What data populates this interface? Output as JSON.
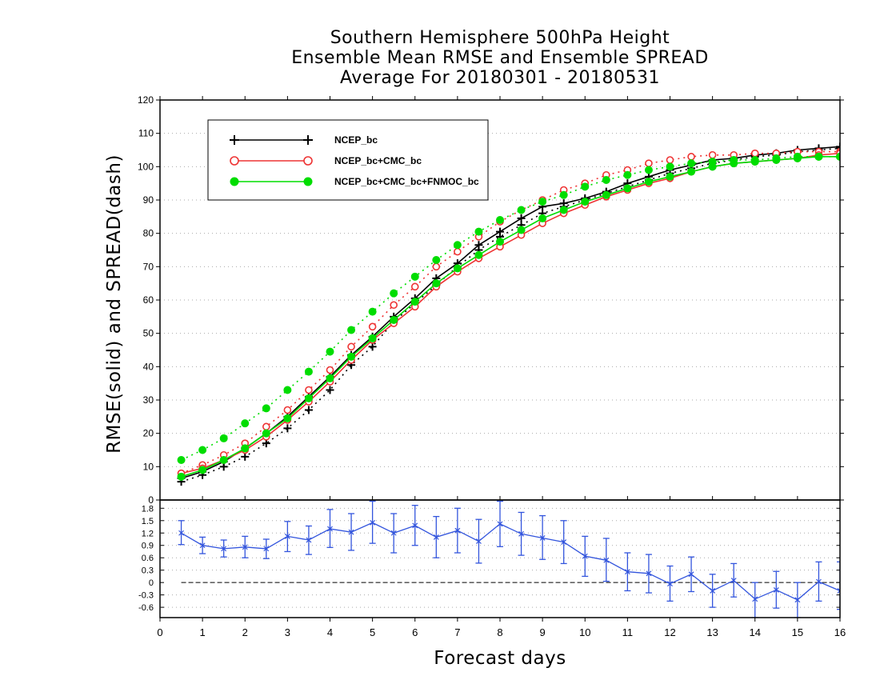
{
  "title": {
    "line1": "Southern Hemisphere 500hPa Height",
    "line2": "Ensemble Mean RMSE and Ensemble SPREAD",
    "line3": "Average For 20180301 - 20180531"
  },
  "chart_data": [
    {
      "type": "line",
      "panel": "top",
      "ylabel": "RMSE(solid) and SPREAD(dash)",
      "xlim": [
        0,
        16
      ],
      "ylim": [
        0,
        120
      ],
      "yticks": [
        0,
        10,
        20,
        30,
        40,
        50,
        60,
        70,
        80,
        90,
        100,
        110,
        120
      ],
      "grid": "dotted horizontal",
      "legend_position": "top-left",
      "x": [
        0.5,
        1,
        1.5,
        2,
        2.5,
        3,
        3.5,
        4,
        4.5,
        5,
        5.5,
        6,
        6.5,
        7,
        7.5,
        8,
        8.5,
        9,
        9.5,
        10,
        10.5,
        11,
        11.5,
        12,
        12.5,
        13,
        13.5,
        14,
        14.5,
        15,
        15.5,
        16
      ],
      "series": [
        {
          "name": "NCEP_bc",
          "color": "#000000",
          "marker": "plus",
          "rmse": [
            6.5,
            8.5,
            11.5,
            15.5,
            20,
            25,
            31,
            37,
            43.5,
            49,
            55,
            60.5,
            66.5,
            71,
            76.5,
            80.5,
            84.5,
            88,
            89,
            90.5,
            92.5,
            95,
            97,
            99,
            100.5,
            102,
            102.5,
            103.5,
            104,
            105,
            105.5,
            106
          ],
          "spread": [
            5.5,
            7.5,
            10,
            13,
            17,
            21.5,
            27,
            33,
            40.5,
            46,
            53.5,
            59,
            64.5,
            70,
            75,
            79,
            82.5,
            86,
            88,
            90,
            92,
            94,
            96,
            98,
            99.5,
            101,
            102,
            103,
            103.5,
            104.5,
            105,
            105.5
          ]
        },
        {
          "name": "NCEP_bc+CMC_bc",
          "color": "#ee3333",
          "marker": "open-circle",
          "rmse": [
            8,
            9.5,
            12,
            15,
            19,
            24,
            29.5,
            35.5,
            42,
            48,
            53,
            58,
            64,
            68.5,
            72.5,
            76,
            79.5,
            83,
            86,
            88.5,
            91,
            93,
            95,
            96.5,
            98.5,
            100,
            101,
            101.5,
            102,
            102.5,
            103.5,
            104
          ],
          "spread": [
            8,
            10.5,
            13.5,
            17,
            22,
            27,
            33,
            39,
            46,
            52,
            58.5,
            64,
            70,
            74.5,
            79,
            83.5,
            87,
            90,
            93,
            95,
            97.5,
            99,
            101,
            102,
            103,
            103.5,
            103.5,
            104,
            104,
            104.5,
            104.5,
            104.5
          ]
        },
        {
          "name": "NCEP_bc+CMC_bc+FNMOC_bc",
          "color": "#00dd00",
          "marker": "filled-circle",
          "rmse": [
            7,
            9,
            12,
            15.5,
            20,
            24.5,
            30.5,
            36.5,
            43,
            48.5,
            54,
            59.5,
            65,
            69.5,
            73.5,
            77.5,
            81,
            84.5,
            87,
            89.5,
            91.5,
            93.5,
            95.5,
            97,
            98.5,
            100,
            101,
            101.5,
            102,
            102.5,
            103,
            103
          ],
          "spread": [
            12,
            15,
            18.5,
            23,
            27.5,
            33,
            38.5,
            44.5,
            51,
            56.5,
            62,
            67,
            72,
            76.5,
            80.5,
            84,
            87,
            89.5,
            91.5,
            94,
            96,
            97.5,
            99,
            100,
            101,
            101.5,
            102,
            102,
            102.5,
            103,
            103,
            103
          ]
        }
      ]
    },
    {
      "type": "line",
      "panel": "bottom",
      "xlabel": "Forecast days",
      "xlim": [
        0,
        16
      ],
      "xticks": [
        0,
        1,
        2,
        3,
        4,
        5,
        6,
        7,
        8,
        9,
        10,
        11,
        12,
        13,
        14,
        15,
        16
      ],
      "ylim": [
        -0.85,
        2.0
      ],
      "yticks": [
        "-0.6",
        "-0.3",
        "0",
        "0.3",
        "0.6",
        "0.9",
        "1.2",
        "1.5",
        "1.8"
      ],
      "reference_line": 0,
      "color": "#3355dd",
      "error_bars": true,
      "x": [
        0.5,
        1,
        1.5,
        2,
        2.5,
        3,
        3.5,
        4,
        4.5,
        5,
        5.5,
        6,
        6.5,
        7,
        7.5,
        8,
        8.5,
        9,
        9.5,
        10,
        10.5,
        11,
        11.5,
        12,
        12.5,
        13,
        13.5,
        14,
        14.5,
        15,
        15.5,
        16
      ],
      "values": [
        1.2,
        0.9,
        0.82,
        0.86,
        0.82,
        1.12,
        1.03,
        1.3,
        1.22,
        1.45,
        1.2,
        1.38,
        1.1,
        1.26,
        1.0,
        1.42,
        1.18,
        1.08,
        0.98,
        0.64,
        0.54,
        0.26,
        0.22,
        -0.03,
        0.2,
        -0.2,
        0.05,
        -0.4,
        -0.18,
        -0.42,
        0.02,
        -0.2
      ],
      "err_upper": [
        1.5,
        1.1,
        1.03,
        1.12,
        1.05,
        1.48,
        1.37,
        1.77,
        1.67,
        1.97,
        1.67,
        1.87,
        1.6,
        1.8,
        1.53,
        1.97,
        1.7,
        1.62,
        1.5,
        1.12,
        1.07,
        0.72,
        0.68,
        0.4,
        0.62,
        0.2,
        0.46,
        0.0,
        0.27,
        0.0,
        0.5,
        0.5
      ],
      "err_lower": [
        0.92,
        0.7,
        0.62,
        0.6,
        0.58,
        0.75,
        0.68,
        0.85,
        0.78,
        0.95,
        0.72,
        0.9,
        0.6,
        0.72,
        0.47,
        0.87,
        0.66,
        0.56,
        0.46,
        0.15,
        0.03,
        -0.2,
        -0.25,
        -0.45,
        -0.22,
        -0.6,
        -0.35,
        -0.85,
        -0.62,
        -0.85,
        -0.45,
        -0.65
      ]
    }
  ]
}
